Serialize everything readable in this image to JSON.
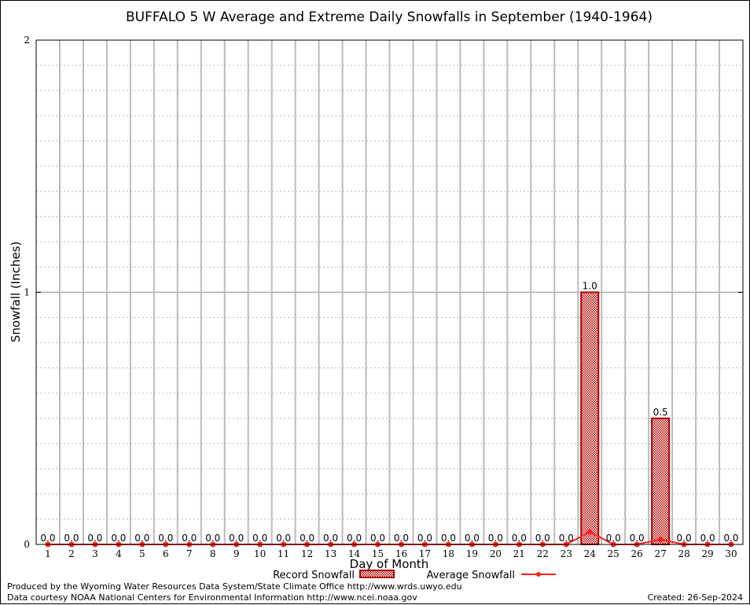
{
  "chart_data": {
    "type": "bar",
    "title": "BUFFALO 5 W Average and Extreme Daily Snowfalls in September (1940-1964)",
    "xlabel": "Day of Month",
    "ylabel": "Snowfall (Inches)",
    "ylim": [
      0,
      2
    ],
    "yticks": [
      "0",
      "1",
      "2"
    ],
    "grid": true,
    "categories": [
      "1",
      "2",
      "3",
      "4",
      "5",
      "6",
      "7",
      "8",
      "9",
      "10",
      "11",
      "12",
      "13",
      "14",
      "15",
      "16",
      "17",
      "18",
      "19",
      "20",
      "21",
      "22",
      "23",
      "24",
      "25",
      "26",
      "27",
      "28",
      "29",
      "30"
    ],
    "series": [
      {
        "name": "Record Snowfall",
        "type": "bar",
        "color": "#b00000",
        "values": [
          0,
          0,
          0,
          0,
          0,
          0,
          0,
          0,
          0,
          0,
          0,
          0,
          0,
          0,
          0,
          0,
          0,
          0,
          0,
          0,
          0,
          0,
          0,
          1.0,
          0,
          0,
          0.5,
          0,
          0,
          0
        ],
        "labels": [
          "0.0",
          "0.0",
          "0.0",
          "0.0",
          "0.0",
          "0.0",
          "0.0",
          "0.0",
          "0.0",
          "0.0",
          "0.0",
          "0.0",
          "0.0",
          "0.0",
          "0.0",
          "0.0",
          "0.0",
          "0.0",
          "0.0",
          "0.0",
          "0.0",
          "0.0",
          "0.0",
          "1.0",
          "0.0",
          "0.0",
          "0.5",
          "0.0",
          "0.0",
          "0.0"
        ]
      },
      {
        "name": "Average Snowfall",
        "type": "line",
        "color": "#ff2020",
        "values": [
          0,
          0,
          0,
          0,
          0,
          0,
          0,
          0,
          0,
          0,
          0,
          0,
          0,
          0,
          0,
          0,
          0,
          0,
          0,
          0,
          0,
          0,
          0,
          0.05,
          0,
          0,
          0.02,
          0,
          0,
          0
        ]
      }
    ],
    "legend": "bottom"
  },
  "footer": {
    "produced": "Produced by the Wyoming Water Resources Data System/State Climate Office http://www.wrds.uwyo.edu",
    "courtesy": "Data courtesy NOAA National Centers for Environmental Information http://www.ncei.noaa.gov",
    "created": "Created: 26-Sep-2024"
  }
}
